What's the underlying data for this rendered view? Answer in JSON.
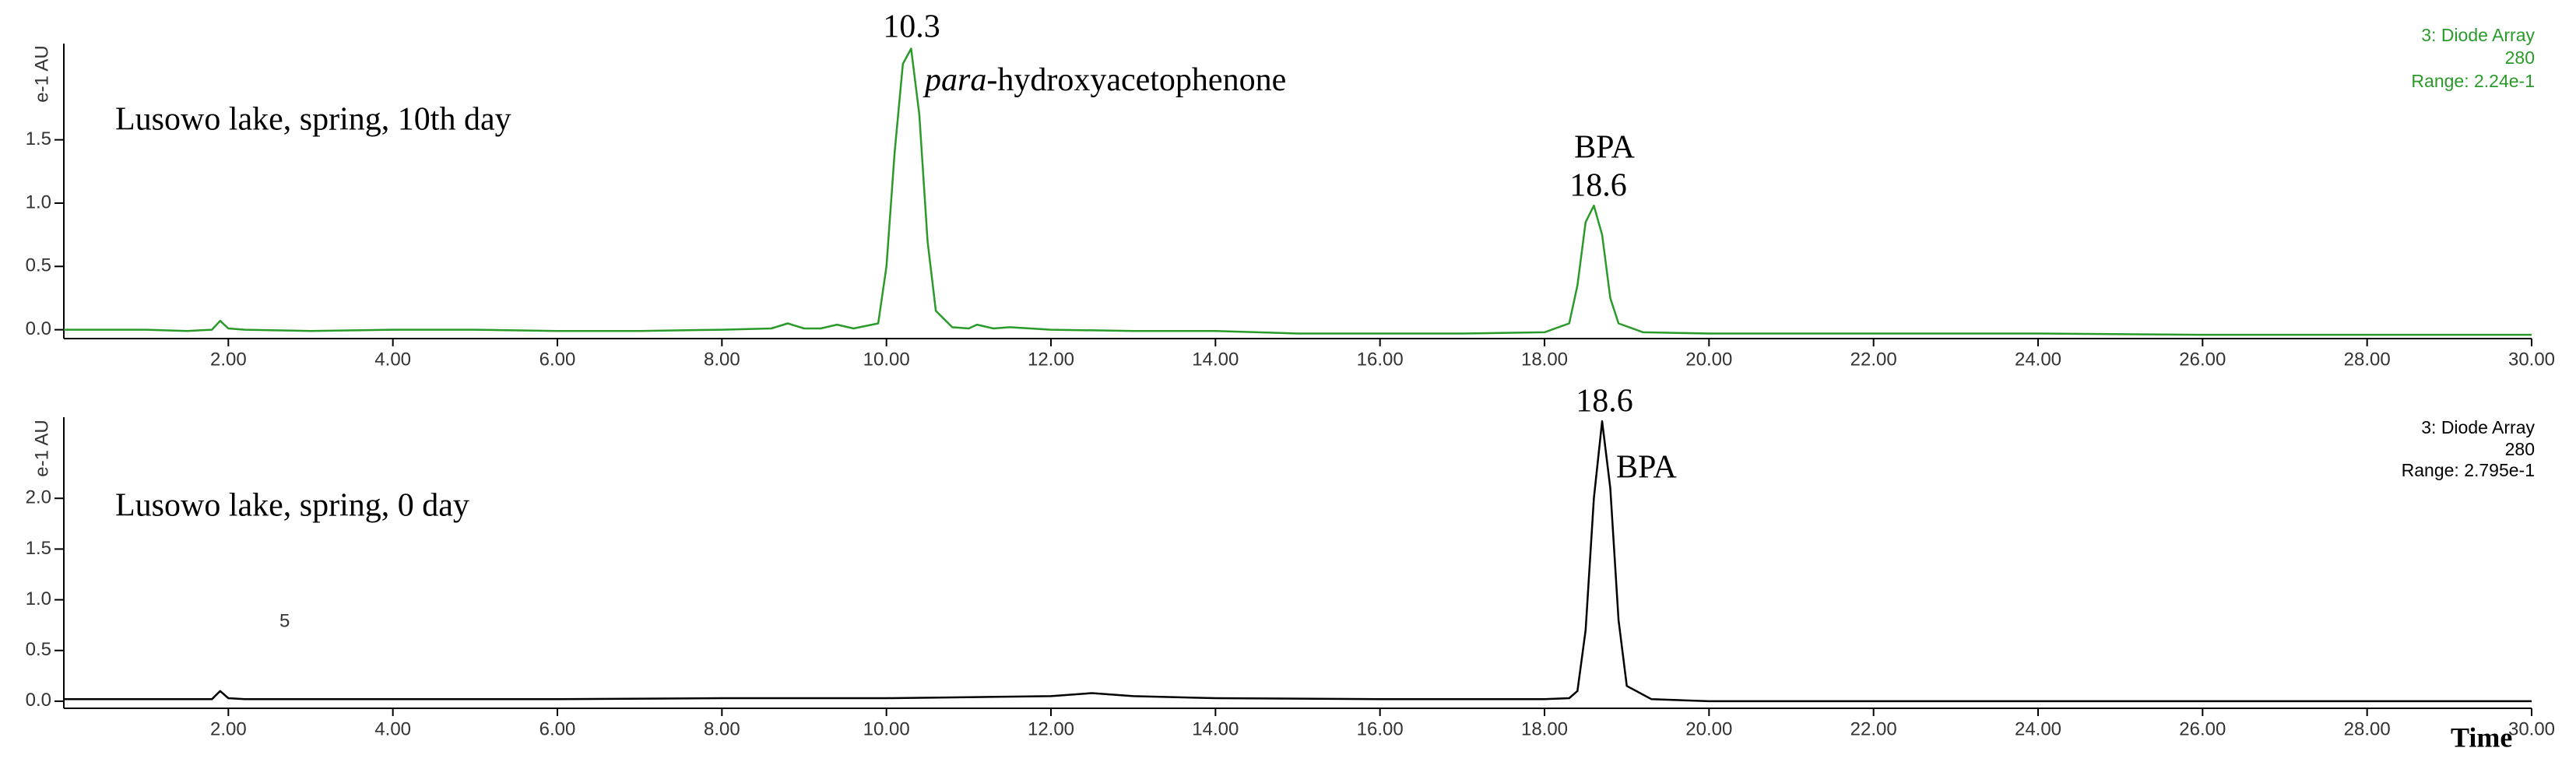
{
  "chart_data": [
    {
      "type": "line",
      "color": "#2a9a2a",
      "sample": "Lusowo lake, spring, 10th day",
      "y_label": "e-1 AU",
      "info": [
        "3: Diode Array",
        "280",
        "Range: 2.24e-1"
      ],
      "annotations": [
        "10.3",
        "BPA",
        "18.6"
      ],
      "compound": {
        "italic": "para",
        "rest": "-hydroxyacetophenone"
      },
      "x": [
        0,
        0.5,
        1,
        1.5,
        1.8,
        1.9,
        2.0,
        2.2,
        3,
        4,
        5,
        6,
        7,
        8,
        8.6,
        8.8,
        9.0,
        9.2,
        9.4,
        9.6,
        9.9,
        10.0,
        10.1,
        10.2,
        10.3,
        10.4,
        10.5,
        10.6,
        10.8,
        11.0,
        11.1,
        11.3,
        11.5,
        12,
        13,
        14,
        15,
        16,
        17,
        18,
        18.3,
        18.4,
        18.5,
        18.6,
        18.7,
        18.8,
        18.9,
        19.2,
        20,
        22,
        24,
        26,
        28,
        30
      ],
      "values": [
        0.0,
        0.0,
        0.0,
        -0.01,
        0.0,
        0.07,
        0.01,
        0.0,
        -0.01,
        0.0,
        0.0,
        -0.01,
        -0.01,
        0.0,
        0.01,
        0.05,
        0.01,
        0.01,
        0.04,
        0.01,
        0.05,
        0.5,
        1.4,
        2.1,
        2.22,
        1.7,
        0.7,
        0.15,
        0.02,
        0.01,
        0.04,
        0.01,
        0.02,
        0.0,
        -0.01,
        -0.01,
        -0.03,
        -0.03,
        -0.03,
        -0.02,
        0.05,
        0.35,
        0.85,
        0.98,
        0.75,
        0.25,
        0.05,
        -0.02,
        -0.03,
        -0.03,
        -0.03,
        -0.04,
        -0.04,
        -0.04
      ],
      "xlim": [
        0,
        30
      ],
      "xticks": [
        {
          "value": 2,
          "label": "2.00"
        },
        {
          "value": 4,
          "label": "4.00"
        },
        {
          "value": 6,
          "label": "6.00"
        },
        {
          "value": 8,
          "label": "8.00"
        },
        {
          "value": 10,
          "label": "10.00"
        },
        {
          "value": 12,
          "label": "12.00"
        },
        {
          "value": 14,
          "label": "14.00"
        },
        {
          "value": 16,
          "label": "16.00"
        },
        {
          "value": 18,
          "label": "18.00"
        },
        {
          "value": 20,
          "label": "20.00"
        },
        {
          "value": 22,
          "label": "22.00"
        },
        {
          "value": 24,
          "label": "24.00"
        },
        {
          "value": 26,
          "label": "26.00"
        },
        {
          "value": 28,
          "label": "28.00"
        },
        {
          "value": 30,
          "label": "30.00"
        }
      ],
      "ylim": [
        -0.07,
        2.26
      ],
      "yticks": [
        {
          "value": 0,
          "label": "0.0"
        },
        0.5,
        {
          "value": 1,
          "label": "1.0"
        },
        1.5
      ]
    },
    {
      "type": "line",
      "color": "#000000",
      "sample": "Lusowo lake, spring, 0 day",
      "y_label": "e-1 AU",
      "info": [
        "3: Diode Array",
        "280",
        "Range: 2.795e-1"
      ],
      "annotations": [
        "18.6",
        "BPA",
        "5"
      ],
      "x_label": "Time",
      "x": [
        0,
        1,
        1.8,
        1.9,
        2.0,
        2.2,
        4,
        6,
        8,
        10,
        11,
        12,
        12.5,
        13,
        14,
        16,
        18,
        18.3,
        18.4,
        18.5,
        18.6,
        18.7,
        18.8,
        18.9,
        19.0,
        19.3,
        20,
        22,
        24,
        26,
        28,
        30
      ],
      "values": [
        0.02,
        0.02,
        0.02,
        0.1,
        0.03,
        0.02,
        0.02,
        0.02,
        0.03,
        0.03,
        0.04,
        0.05,
        0.08,
        0.05,
        0.03,
        0.02,
        0.02,
        0.03,
        0.1,
        0.7,
        2.0,
        2.76,
        2.1,
        0.8,
        0.15,
        0.02,
        0.0,
        0.0,
        0.0,
        0.0,
        0.0,
        0.0
      ],
      "xlim": [
        0,
        30
      ],
      "xticks": [
        {
          "value": 2,
          "label": "2.00"
        },
        {
          "value": 4,
          "label": "4.00"
        },
        {
          "value": 6,
          "label": "6.00"
        },
        {
          "value": 8,
          "label": "8.00"
        },
        {
          "value": 10,
          "label": "10.00"
        },
        {
          "value": 12,
          "label": "12.00"
        },
        {
          "value": 14,
          "label": "14.00"
        },
        {
          "value": 16,
          "label": "16.00"
        },
        {
          "value": 18,
          "label": "18.00"
        },
        {
          "value": 20,
          "label": "20.00"
        },
        {
          "value": 22,
          "label": "22.00"
        },
        {
          "value": 24,
          "label": "24.00"
        },
        {
          "value": 26,
          "label": "26.00"
        },
        {
          "value": 28,
          "label": "28.00"
        },
        {
          "value": 30,
          "label": "30.00"
        }
      ],
      "ylim": [
        -0.07,
        2.8
      ],
      "yticks": [
        {
          "value": 0,
          "label": "0.0"
        },
        0.5,
        {
          "value": 1,
          "label": "1.0"
        },
        1.5,
        {
          "value": 2,
          "label": "2.0"
        }
      ]
    }
  ]
}
